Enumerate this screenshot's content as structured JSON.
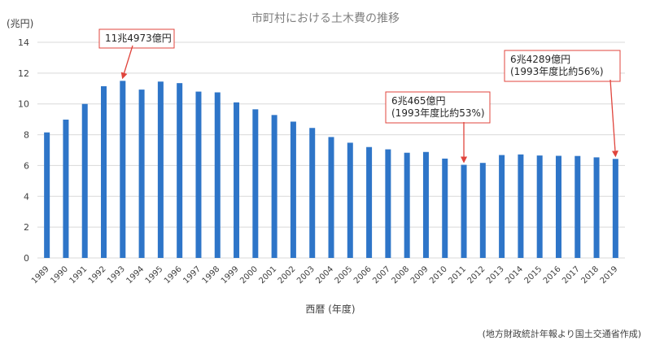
{
  "chart_data": {
    "type": "bar",
    "title": "市町村における土木費の推移",
    "ylabel": "(兆円)",
    "xlabel": "西暦 (年度)",
    "source": "(地方財政統計年報より国土交通省作成)",
    "ylim": [
      0,
      14
    ],
    "yticks": [
      0,
      2,
      4,
      6,
      8,
      10,
      12,
      14
    ],
    "grid": true,
    "bar_color": "#2e75c8",
    "categories": [
      "1989",
      "1990",
      "1991",
      "1992",
      "1993",
      "1994",
      "1995",
      "1996",
      "1997",
      "1998",
      "1999",
      "2000",
      "2001",
      "2002",
      "2003",
      "2004",
      "2005",
      "2006",
      "2007",
      "2008",
      "2009",
      "2010",
      "2011",
      "2012",
      "2013",
      "2014",
      "2015",
      "2016",
      "2017",
      "2018",
      "2019"
    ],
    "values": [
      8.15,
      8.98,
      10.0,
      11.15,
      11.4973,
      10.93,
      11.45,
      11.35,
      10.8,
      10.75,
      10.1,
      9.65,
      9.28,
      8.85,
      8.44,
      7.85,
      7.48,
      7.2,
      7.05,
      6.83,
      6.88,
      6.45,
      6.0465,
      6.17,
      6.68,
      6.72,
      6.65,
      6.63,
      6.62,
      6.53,
      6.4289
    ],
    "annotations": [
      {
        "category": "1993",
        "lines": [
          "11兆4973億円"
        ]
      },
      {
        "category": "2011",
        "lines": [
          "6兆465億円",
          "(1993年度比約53%)"
        ]
      },
      {
        "category": "2019",
        "lines": [
          "6兆4289億円",
          "(1993年度比約56%)"
        ]
      }
    ]
  },
  "colors": {
    "annotation_border": "#e0443c",
    "arrow": "#e0443c",
    "grid": "#d9d9d9",
    "axis_text": "#404040",
    "title": "#7f7f7f"
  }
}
